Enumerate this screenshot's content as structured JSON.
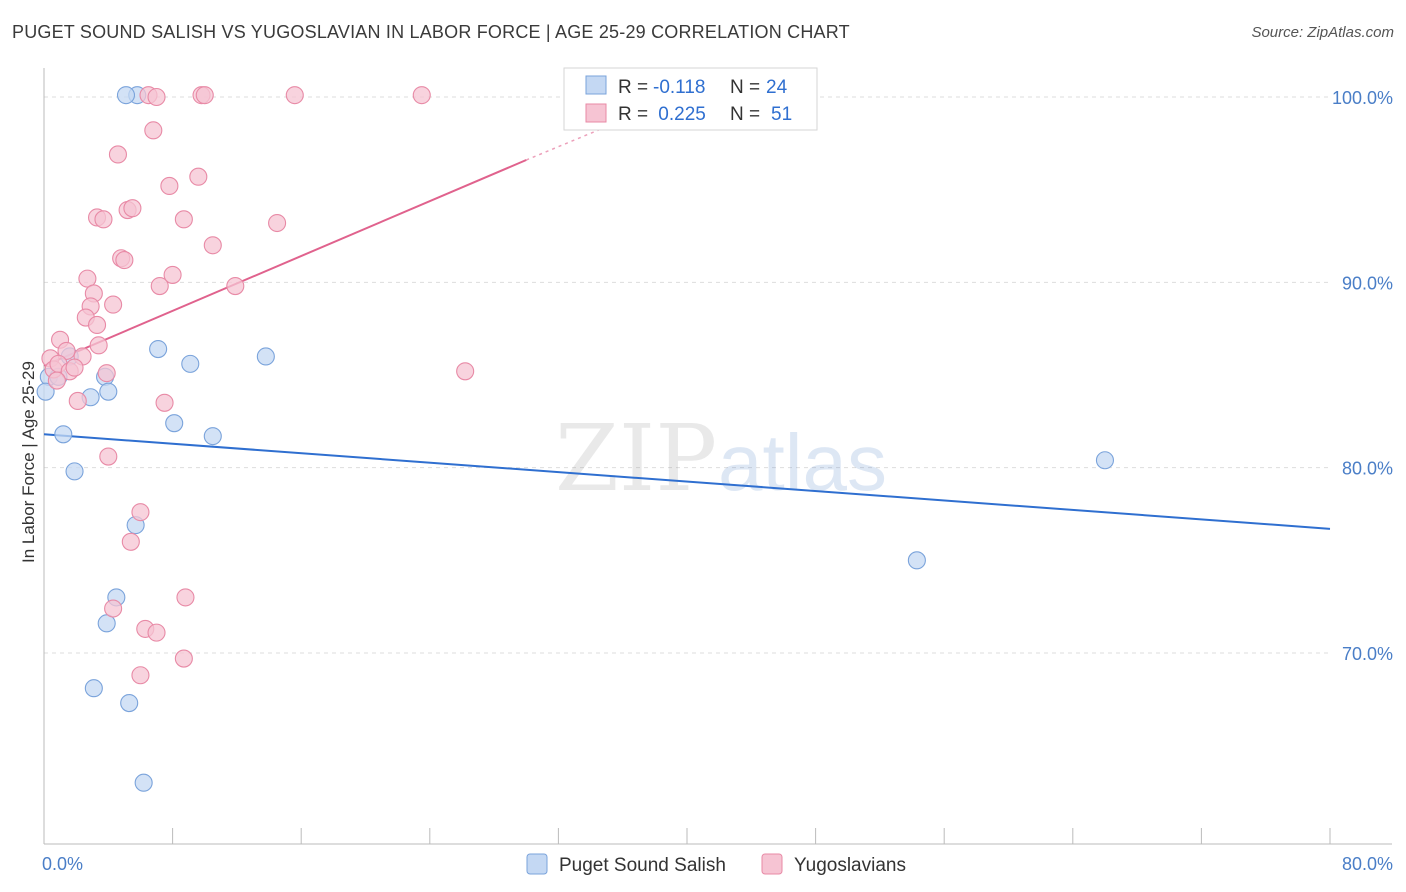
{
  "header": {
    "title": "PUGET SOUND SALISH VS YUGOSLAVIAN IN LABOR FORCE | AGE 25-29 CORRELATION CHART",
    "source": "Source: ZipAtlas.com"
  },
  "watermark": {
    "zip": "ZIP",
    "atlas": "atlas"
  },
  "chart_data": {
    "type": "scatter",
    "title": "PUGET SOUND SALISH VS YUGOSLAVIAN IN LABOR FORCE | AGE 25-29 CORRELATION CHART",
    "xlabel": "",
    "ylabel": "In Labor Force | Age 25-29",
    "xlim": [
      0,
      80
    ],
    "ylim": [
      62.5,
      103.5
    ],
    "x_tick_labels": [
      {
        "value": 0,
        "label": "0.0%"
      },
      {
        "value": 80,
        "label": "80.0%"
      }
    ],
    "y_tick_labels": [
      {
        "value": 70,
        "label": "70.0%"
      },
      {
        "value": 80,
        "label": "80.0%"
      },
      {
        "value": 90,
        "label": "90.0%"
      },
      {
        "value": 100,
        "label": "100.0%"
      }
    ],
    "grid": true,
    "legend_position": "bottom-center",
    "stats_box": [
      {
        "r_label": "R =",
        "r_value": "-0.118",
        "n_label": "N =",
        "n_value": "24"
      },
      {
        "r_label": "R =",
        "r_value": " 0.225",
        "n_label": "N =",
        "n_value": "51"
      }
    ],
    "series": [
      {
        "name": "Puget Sound Salish",
        "color": "#7aa3db",
        "fill": "#c4d8f3",
        "trend_color": "#2f6fd0",
        "trend": {
          "x": [
            0,
            80
          ],
          "y": [
            81.8,
            76.7
          ]
        },
        "points": [
          [
            5.8,
            100.1
          ],
          [
            5.1,
            100.1
          ],
          [
            7.1,
            86.4
          ],
          [
            9.1,
            85.6
          ],
          [
            13.8,
            86.0
          ],
          [
            1.6,
            86.0
          ],
          [
            0.3,
            84.9
          ],
          [
            0.9,
            84.9
          ],
          [
            3.8,
            84.9
          ],
          [
            4.0,
            84.1
          ],
          [
            2.9,
            83.8
          ],
          [
            1.2,
            81.8
          ],
          [
            8.1,
            82.4
          ],
          [
            10.5,
            81.7
          ],
          [
            1.9,
            79.8
          ],
          [
            5.7,
            76.9
          ],
          [
            4.5,
            73.0
          ],
          [
            3.9,
            71.6
          ],
          [
            3.1,
            68.1
          ],
          [
            5.3,
            67.3
          ],
          [
            6.2,
            63.0
          ],
          [
            66.0,
            80.4
          ],
          [
            54.3,
            75.0
          ],
          [
            0.1,
            84.1
          ]
        ]
      },
      {
        "name": "Yugoslavians",
        "color": "#e88aa6",
        "fill": "#f6c4d3",
        "trend_color": "#e0628d",
        "trend": {
          "x": [
            0,
            30
          ],
          "y": [
            85.5,
            96.6
          ]
        },
        "trend_dashed": {
          "x": [
            30,
            35
          ],
          "y": [
            96.6,
            98.4
          ]
        },
        "points": [
          [
            6.5,
            100.1
          ],
          [
            7.0,
            100.0
          ],
          [
            9.8,
            100.1
          ],
          [
            10.0,
            100.1
          ],
          [
            15.6,
            100.1
          ],
          [
            23.5,
            100.1
          ],
          [
            6.8,
            98.2
          ],
          [
            4.6,
            96.9
          ],
          [
            7.8,
            95.2
          ],
          [
            9.6,
            95.7
          ],
          [
            3.3,
            93.5
          ],
          [
            3.7,
            93.4
          ],
          [
            5.2,
            93.9
          ],
          [
            5.5,
            94.0
          ],
          [
            8.7,
            93.4
          ],
          [
            14.5,
            93.2
          ],
          [
            10.5,
            92.0
          ],
          [
            4.8,
            91.3
          ],
          [
            5.0,
            91.2
          ],
          [
            2.7,
            90.2
          ],
          [
            7.2,
            89.8
          ],
          [
            8.0,
            90.4
          ],
          [
            11.9,
            89.8
          ],
          [
            3.1,
            89.4
          ],
          [
            2.9,
            88.7
          ],
          [
            4.3,
            88.8
          ],
          [
            2.6,
            88.1
          ],
          [
            3.3,
            87.7
          ],
          [
            1.0,
            86.9
          ],
          [
            1.4,
            86.3
          ],
          [
            0.4,
            85.9
          ],
          [
            3.4,
            86.6
          ],
          [
            2.4,
            86.0
          ],
          [
            0.6,
            85.3
          ],
          [
            0.9,
            85.6
          ],
          [
            1.6,
            85.2
          ],
          [
            1.9,
            85.4
          ],
          [
            3.9,
            85.1
          ],
          [
            26.2,
            85.2
          ],
          [
            0.8,
            84.7
          ],
          [
            2.1,
            83.6
          ],
          [
            7.5,
            83.5
          ],
          [
            4.0,
            80.6
          ],
          [
            6.0,
            77.6
          ],
          [
            5.4,
            76.0
          ],
          [
            8.8,
            73.0
          ],
          [
            4.3,
            72.4
          ],
          [
            6.3,
            71.3
          ],
          [
            7.0,
            71.1
          ],
          [
            8.7,
            69.7
          ],
          [
            6.0,
            68.8
          ]
        ]
      }
    ]
  }
}
